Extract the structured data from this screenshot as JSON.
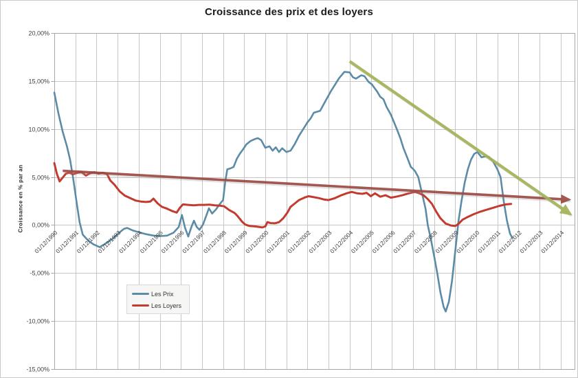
{
  "chart_data": {
    "type": "line",
    "title": "Croissance des prix et des loyers",
    "ylabel": "Croissance en % par an",
    "xlabel": "",
    "ylim": [
      -15,
      20
    ],
    "y_tick_step": 5,
    "y_tick_labels": [
      "20,00%",
      "15,00%",
      "10,00%",
      "5,00%",
      "0,00%",
      "-5,00%",
      "-10,00%",
      "-15,00%"
    ],
    "x_tick_labels": [
      "01/12/1990",
      "01/12/1991",
      "01/12/1992",
      "01/12/1993",
      "01/12/1994",
      "01/12/1995",
      "01/12/1996",
      "01/12/1997",
      "01/12/1998",
      "01/12/1999",
      "01/12/2000",
      "01/12/2001",
      "01/12/2002",
      "01/12/2003",
      "01/12/2004",
      "01/12/2005",
      "01/12/2006",
      "01/12/2007",
      "01/12/2008",
      "01/12/2009",
      "01/12/2010",
      "01/12/2011",
      "01/12/2012",
      "01/12/2013",
      "01/12/2014"
    ],
    "x_unit": "years after 01/12/1990, one gridline per year",
    "xlim": [
      0,
      24.65
    ],
    "grid": true,
    "legend_position": "inside lower-left",
    "colors": {
      "grid": "#c6c6c6",
      "plot_border": "#a6a6a6",
      "axis_text": "#3f3f3f",
      "background": "#ffffff"
    },
    "series": [
      {
        "name": "Les Prix",
        "color": "#5b8ba6",
        "width": 2.6,
        "points": [
          [
            0,
            13.8
          ],
          [
            0.2,
            11.6
          ],
          [
            0.4,
            9.7
          ],
          [
            0.6,
            8.2
          ],
          [
            0.75,
            6.8
          ],
          [
            0.9,
            4.8
          ],
          [
            1.05,
            2.5
          ],
          [
            1.2,
            0.3
          ],
          [
            1.35,
            -1
          ],
          [
            1.6,
            -1.6
          ],
          [
            1.85,
            -2
          ],
          [
            2.15,
            -2.3
          ],
          [
            2.45,
            -1.9
          ],
          [
            2.75,
            -1.45
          ],
          [
            3.05,
            -0.85
          ],
          [
            3.3,
            -0.4
          ],
          [
            3.45,
            -0.3
          ],
          [
            3.7,
            -0.55
          ],
          [
            4,
            -0.75
          ],
          [
            4.35,
            -0.95
          ],
          [
            4.7,
            -1.1
          ],
          [
            5.05,
            -1.15
          ],
          [
            5.35,
            -1.1
          ],
          [
            5.65,
            -0.8
          ],
          [
            5.9,
            -0.2
          ],
          [
            6.05,
            1.05
          ],
          [
            6.2,
            -0.3
          ],
          [
            6.35,
            -1.2
          ],
          [
            6.5,
            -0.2
          ],
          [
            6.62,
            0.45
          ],
          [
            6.75,
            -0.2
          ],
          [
            6.88,
            -0.5
          ],
          [
            7.05,
            0.05
          ],
          [
            7.2,
            0.95
          ],
          [
            7.33,
            1.75
          ],
          [
            7.48,
            1.2
          ],
          [
            7.65,
            1.6
          ],
          [
            7.85,
            2.2
          ],
          [
            8,
            2.6
          ],
          [
            8.1,
            4.5
          ],
          [
            8.2,
            5.8
          ],
          [
            8.35,
            5.9
          ],
          [
            8.5,
            6.05
          ],
          [
            8.65,
            6.9
          ],
          [
            8.8,
            7.45
          ],
          [
            8.95,
            7.9
          ],
          [
            9.1,
            8.4
          ],
          [
            9.3,
            8.75
          ],
          [
            9.5,
            8.95
          ],
          [
            9.65,
            9.05
          ],
          [
            9.8,
            8.85
          ],
          [
            10,
            8.05
          ],
          [
            10.2,
            8.2
          ],
          [
            10.35,
            7.75
          ],
          [
            10.5,
            8.1
          ],
          [
            10.65,
            7.6
          ],
          [
            10.8,
            8
          ],
          [
            11,
            7.6
          ],
          [
            11.2,
            7.75
          ],
          [
            11.4,
            8.45
          ],
          [
            11.6,
            9.3
          ],
          [
            11.8,
            10
          ],
          [
            12,
            10.7
          ],
          [
            12.15,
            11.1
          ],
          [
            12.3,
            11.7
          ],
          [
            12.45,
            11.8
          ],
          [
            12.6,
            11.9
          ],
          [
            12.75,
            12.5
          ],
          [
            12.9,
            13.1
          ],
          [
            13.1,
            13.9
          ],
          [
            13.3,
            14.6
          ],
          [
            13.5,
            15.3
          ],
          [
            13.75,
            15.95
          ],
          [
            14,
            15.9
          ],
          [
            14.15,
            15.4
          ],
          [
            14.3,
            15.25
          ],
          [
            14.55,
            15.6
          ],
          [
            14.7,
            15.5
          ],
          [
            14.9,
            14.9
          ],
          [
            15.05,
            14.65
          ],
          [
            15.3,
            13.9
          ],
          [
            15.45,
            13.35
          ],
          [
            15.6,
            13.1
          ],
          [
            15.75,
            12.3
          ],
          [
            15.95,
            11.5
          ],
          [
            16.1,
            10.7
          ],
          [
            16.25,
            9.9
          ],
          [
            16.4,
            9.05
          ],
          [
            16.55,
            8
          ],
          [
            16.75,
            6.9
          ],
          [
            16.9,
            6.05
          ],
          [
            17,
            5.85
          ],
          [
            17.1,
            5.6
          ],
          [
            17.25,
            5
          ],
          [
            17.35,
            4.05
          ],
          [
            17.45,
            3.1
          ],
          [
            17.6,
            1.65
          ],
          [
            17.7,
            0
          ],
          [
            17.85,
            -1.5
          ],
          [
            18,
            -3.2
          ],
          [
            18.15,
            -5
          ],
          [
            18.3,
            -7
          ],
          [
            18.45,
            -8.5
          ],
          [
            18.55,
            -9
          ],
          [
            18.7,
            -8
          ],
          [
            18.85,
            -5.8
          ],
          [
            19,
            -2.8
          ],
          [
            19.15,
            0.3
          ],
          [
            19.3,
            2.5
          ],
          [
            19.45,
            4.4
          ],
          [
            19.6,
            5.8
          ],
          [
            19.75,
            6.8
          ],
          [
            19.9,
            7.4
          ],
          [
            20.05,
            7.6
          ],
          [
            20.25,
            7.05
          ],
          [
            20.45,
            7.15
          ],
          [
            20.6,
            7.1
          ],
          [
            20.8,
            6.6
          ],
          [
            21,
            5.8
          ],
          [
            21.15,
            5
          ],
          [
            21.3,
            2.5
          ],
          [
            21.45,
            0.5
          ],
          [
            21.6,
            -0.9
          ],
          [
            21.7,
            -1.3
          ]
        ]
      },
      {
        "name": "Les Loyers",
        "color": "#c23b2e",
        "width": 3,
        "points": [
          [
            0,
            6.45
          ],
          [
            0.12,
            5.35
          ],
          [
            0.25,
            4.55
          ],
          [
            0.4,
            4.95
          ],
          [
            0.55,
            5.35
          ],
          [
            0.7,
            5.45
          ],
          [
            0.9,
            5.3
          ],
          [
            1.1,
            5.45
          ],
          [
            1.3,
            5.5
          ],
          [
            1.5,
            5.15
          ],
          [
            1.7,
            5.4
          ],
          [
            1.9,
            5.5
          ],
          [
            2.1,
            5.35
          ],
          [
            2.3,
            5.45
          ],
          [
            2.5,
            5.3
          ],
          [
            2.65,
            4.65
          ],
          [
            2.85,
            4.2
          ],
          [
            3.1,
            3.5
          ],
          [
            3.35,
            3.05
          ],
          [
            3.6,
            2.8
          ],
          [
            3.85,
            2.55
          ],
          [
            4.1,
            2.45
          ],
          [
            4.35,
            2.4
          ],
          [
            4.55,
            2.45
          ],
          [
            4.7,
            2.75
          ],
          [
            4.9,
            2.25
          ],
          [
            5.1,
            1.9
          ],
          [
            5.35,
            1.7
          ],
          [
            5.6,
            1.45
          ],
          [
            5.8,
            1.3
          ],
          [
            5.95,
            1.8
          ],
          [
            6.1,
            2.15
          ],
          [
            6.35,
            2.1
          ],
          [
            6.6,
            2.05
          ],
          [
            6.85,
            2.1
          ],
          [
            7.1,
            2.1
          ],
          [
            7.35,
            2.12
          ],
          [
            7.6,
            2.05
          ],
          [
            7.85,
            2.02
          ],
          [
            8.05,
            1.95
          ],
          [
            8.3,
            1.55
          ],
          [
            8.55,
            1.25
          ],
          [
            8.7,
            0.9
          ],
          [
            8.9,
            0.35
          ],
          [
            9.05,
            0.05
          ],
          [
            9.25,
            -0.1
          ],
          [
            9.55,
            -0.15
          ],
          [
            9.85,
            -0.25
          ],
          [
            10,
            -0.15
          ],
          [
            10.1,
            0.3
          ],
          [
            10.25,
            0.2
          ],
          [
            10.45,
            0.18
          ],
          [
            10.65,
            0.3
          ],
          [
            10.85,
            0.7
          ],
          [
            11.05,
            1.3
          ],
          [
            11.2,
            1.9
          ],
          [
            11.4,
            2.25
          ],
          [
            11.6,
            2.6
          ],
          [
            11.85,
            2.85
          ],
          [
            12.05,
            3
          ],
          [
            12.3,
            2.9
          ],
          [
            12.55,
            2.8
          ],
          [
            12.8,
            2.65
          ],
          [
            13,
            2.6
          ],
          [
            13.3,
            2.8
          ],
          [
            13.6,
            3.1
          ],
          [
            13.85,
            3.3
          ],
          [
            14.1,
            3.45
          ],
          [
            14.35,
            3.3
          ],
          [
            14.6,
            3.25
          ],
          [
            14.8,
            3.35
          ],
          [
            15,
            3
          ],
          [
            15.2,
            3.3
          ],
          [
            15.45,
            2.95
          ],
          [
            15.7,
            3.1
          ],
          [
            15.95,
            2.85
          ],
          [
            16.2,
            2.95
          ],
          [
            16.5,
            3.1
          ],
          [
            16.8,
            3.3
          ],
          [
            17.1,
            3.45
          ],
          [
            17.3,
            3.3
          ],
          [
            17.5,
            3.1
          ],
          [
            17.7,
            2.7
          ],
          [
            17.9,
            2.2
          ],
          [
            18.1,
            1.4
          ],
          [
            18.3,
            0.7
          ],
          [
            18.55,
            0.15
          ],
          [
            18.8,
            -0.05
          ],
          [
            19,
            -0.1
          ],
          [
            19.15,
            0.1
          ],
          [
            19.35,
            0.55
          ],
          [
            19.6,
            0.85
          ],
          [
            19.9,
            1.15
          ],
          [
            20.2,
            1.4
          ],
          [
            20.5,
            1.6
          ],
          [
            20.8,
            1.8
          ],
          [
            21.1,
            2
          ],
          [
            21.4,
            2.15
          ],
          [
            21.65,
            2.2
          ]
        ]
      }
    ],
    "annotations": [
      {
        "name": "trend-arrow-loyers",
        "type": "arrow",
        "color": "#9c4a43",
        "width": 3.6,
        "from": [
          0.4,
          5.65
        ],
        "to": [
          24.4,
          2.65
        ]
      },
      {
        "name": "trend-arrow-prix",
        "type": "arrow",
        "color": "#a2b458",
        "width": 4.2,
        "from": [
          14.0,
          17.05
        ],
        "to": [
          24.45,
          1.15
        ]
      }
    ]
  }
}
